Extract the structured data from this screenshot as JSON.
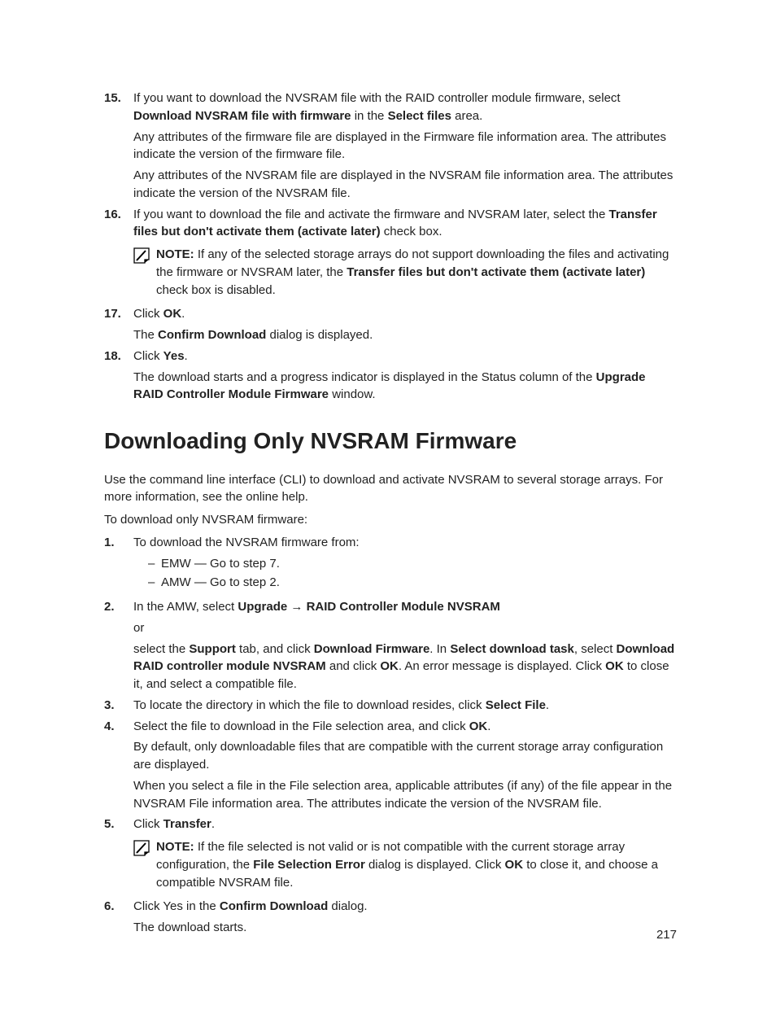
{
  "steps_a": [
    {
      "n": "15.",
      "paras": [
        [
          {
            "t": "If you want to download the NVSRAM file with the RAID controller module firmware, select "
          },
          {
            "t": "Download NVSRAM file with firmware",
            "b": true
          },
          {
            "t": " in the "
          },
          {
            "t": "Select files",
            "b": true
          },
          {
            "t": " area."
          }
        ],
        [
          {
            "t": "Any attributes of the firmware file are displayed in the Firmware file information area. The attributes indicate the version of the firmware file."
          }
        ],
        [
          {
            "t": "Any attributes of the NVSRAM file are displayed in the NVSRAM file information area. The attributes indicate the version of the NVSRAM file."
          }
        ]
      ]
    },
    {
      "n": "16.",
      "paras": [
        [
          {
            "t": "If you want to download the file and activate the firmware and NVSRAM later, select the "
          },
          {
            "t": "Transfer files but don't activate them (activate later)",
            "b": true
          },
          {
            "t": " check box."
          }
        ]
      ],
      "note": [
        {
          "t": "NOTE:",
          "b": true
        },
        {
          "t": " If any of the selected storage arrays do not support downloading the files and activating the firmware or NVSRAM later, the "
        },
        {
          "t": "Transfer files but don't activate them (activate later)",
          "b": true
        },
        {
          "t": " check box is disabled."
        }
      ]
    },
    {
      "n": "17.",
      "paras": [
        [
          {
            "t": "Click "
          },
          {
            "t": "OK",
            "b": true
          },
          {
            "t": "."
          }
        ],
        [
          {
            "t": "The "
          },
          {
            "t": "Confirm Download",
            "b": true
          },
          {
            "t": " dialog is displayed."
          }
        ]
      ]
    },
    {
      "n": "18.",
      "paras": [
        [
          {
            "t": "Click "
          },
          {
            "t": "Yes",
            "b": true
          },
          {
            "t": "."
          }
        ],
        [
          {
            "t": "The download starts and a progress indicator is displayed in the Status column of the "
          },
          {
            "t": "Upgrade RAID Controller Module Firmware",
            "b": true
          },
          {
            "t": " window."
          }
        ]
      ]
    }
  ],
  "heading": "Downloading Only NVSRAM Firmware",
  "intro": [
    "Use the command line interface (CLI) to download and activate NVSRAM to several storage arrays. For more information, see the online help.",
    "To download only NVSRAM firmware:"
  ],
  "steps_b": [
    {
      "n": "1.",
      "paras": [
        [
          {
            "t": "To download the NVSRAM firmware from:"
          }
        ]
      ],
      "sub": [
        "EMW — Go to step 7.",
        "AMW — Go to step 2."
      ]
    },
    {
      "n": "2.",
      "paras": [
        [
          {
            "t": "In the AMW, select "
          },
          {
            "t": "Upgrade → RAID Controller Module NVSRAM",
            "b": true
          }
        ],
        [
          {
            "t": "or"
          }
        ],
        [
          {
            "t": "select the "
          },
          {
            "t": "Support",
            "b": true
          },
          {
            "t": " tab, and click "
          },
          {
            "t": "Download Firmware",
            "b": true
          },
          {
            "t": ". In "
          },
          {
            "t": "Select download task",
            "b": true
          },
          {
            "t": ", select "
          },
          {
            "t": "Download RAID controller module NVSRAM",
            "b": true
          },
          {
            "t": " and click "
          },
          {
            "t": "OK",
            "b": true
          },
          {
            "t": ". An error message is displayed. Click "
          },
          {
            "t": "OK",
            "b": true
          },
          {
            "t": " to close it, and select a compatible file."
          }
        ]
      ]
    },
    {
      "n": "3.",
      "paras": [
        [
          {
            "t": "To locate the directory in which the file to download resides, click "
          },
          {
            "t": "Select File",
            "b": true
          },
          {
            "t": "."
          }
        ]
      ]
    },
    {
      "n": "4.",
      "paras": [
        [
          {
            "t": "Select the file to download in the File selection area, and click "
          },
          {
            "t": "OK",
            "b": true
          },
          {
            "t": "."
          }
        ],
        [
          {
            "t": "By default, only downloadable files that are compatible with the current storage array configuration are displayed."
          }
        ],
        [
          {
            "t": "When you select a file in the File selection area, applicable attributes (if any) of the file appear in the NVSRAM File information area. The attributes indicate the version of the NVSRAM file."
          }
        ]
      ]
    },
    {
      "n": "5.",
      "paras": [
        [
          {
            "t": "Click "
          },
          {
            "t": "Transfer",
            "b": true
          },
          {
            "t": "."
          }
        ]
      ],
      "note": [
        {
          "t": "NOTE:",
          "b": true
        },
        {
          "t": " If the file selected is not valid or is not compatible with the current storage array configuration, the "
        },
        {
          "t": "File Selection Error",
          "b": true
        },
        {
          "t": " dialog is displayed. Click "
        },
        {
          "t": "OK",
          "b": true
        },
        {
          "t": " to close it, and choose a compatible NVSRAM file."
        }
      ]
    },
    {
      "n": "6.",
      "paras": [
        [
          {
            "t": "Click Yes in the "
          },
          {
            "t": "Confirm Download",
            "b": true
          },
          {
            "t": " dialog."
          }
        ],
        [
          {
            "t": "The download starts."
          }
        ]
      ]
    }
  ],
  "page_num": "217"
}
